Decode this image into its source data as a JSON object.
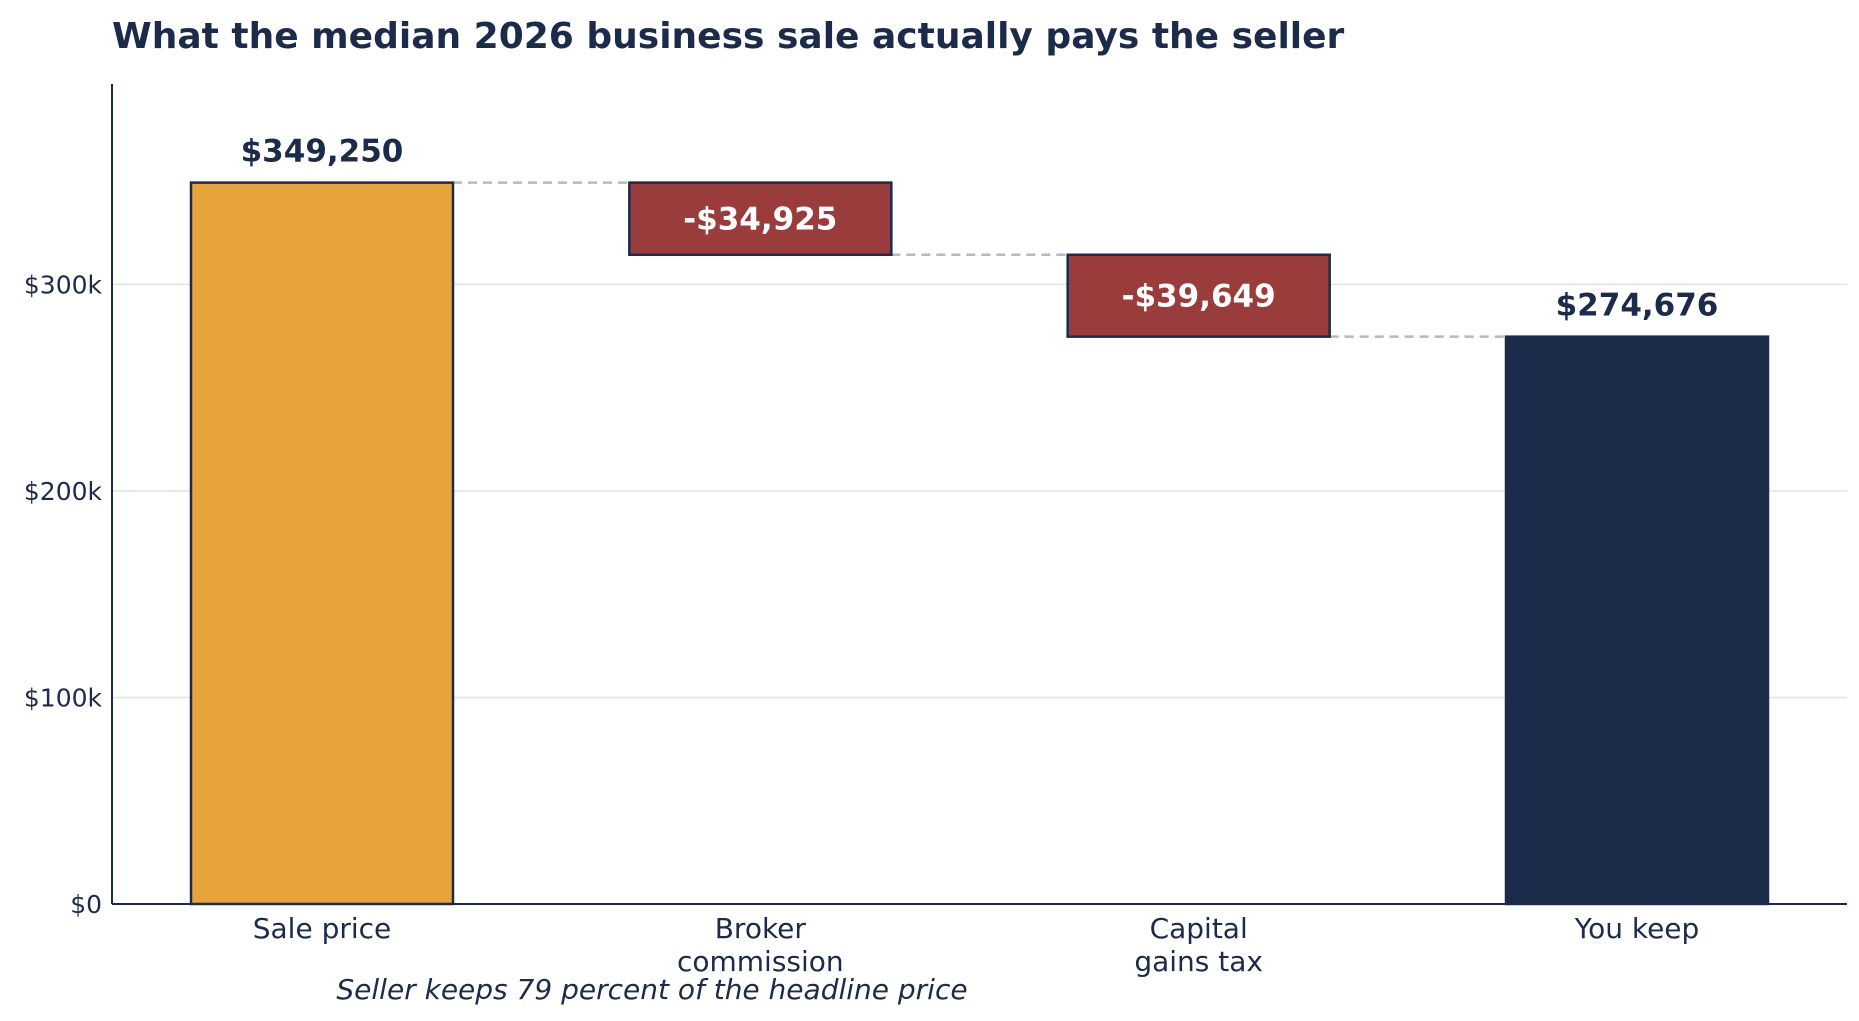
{
  "chart_data": {
    "type": "bar",
    "subtype": "waterfall",
    "title": "What the median 2026 business sale actually pays the seller",
    "subtitle": "Seller keeps 79 percent of the headline price",
    "xlabel": "",
    "ylabel": "",
    "ylim": [
      0,
      397000
    ],
    "yticks": [
      0,
      100000,
      200000,
      300000
    ],
    "ytick_labels": [
      "$0",
      "$100k",
      "$200k",
      "$300k"
    ],
    "grid": true,
    "legend": "none",
    "categories": [
      [
        "Sale price"
      ],
      [
        "Broker",
        "commission"
      ],
      [
        "Capital",
        "gains tax"
      ],
      [
        "You keep"
      ]
    ],
    "steps": [
      {
        "kind": "total",
        "value": 349250,
        "label": "$349,250"
      },
      {
        "kind": "delta",
        "value": -34925,
        "label": "-$34,925"
      },
      {
        "kind": "delta",
        "value": -39649,
        "label": "-$39,649"
      },
      {
        "kind": "total",
        "value": 274676,
        "label": "$274,676"
      }
    ],
    "colors": {
      "start": "#E8A43C",
      "decrease": "#9A3C3C",
      "end": "#1C2B4A",
      "text": "#1C2B4A",
      "grid": "#E2E2E2",
      "connector": "#B8B8C0"
    }
  }
}
